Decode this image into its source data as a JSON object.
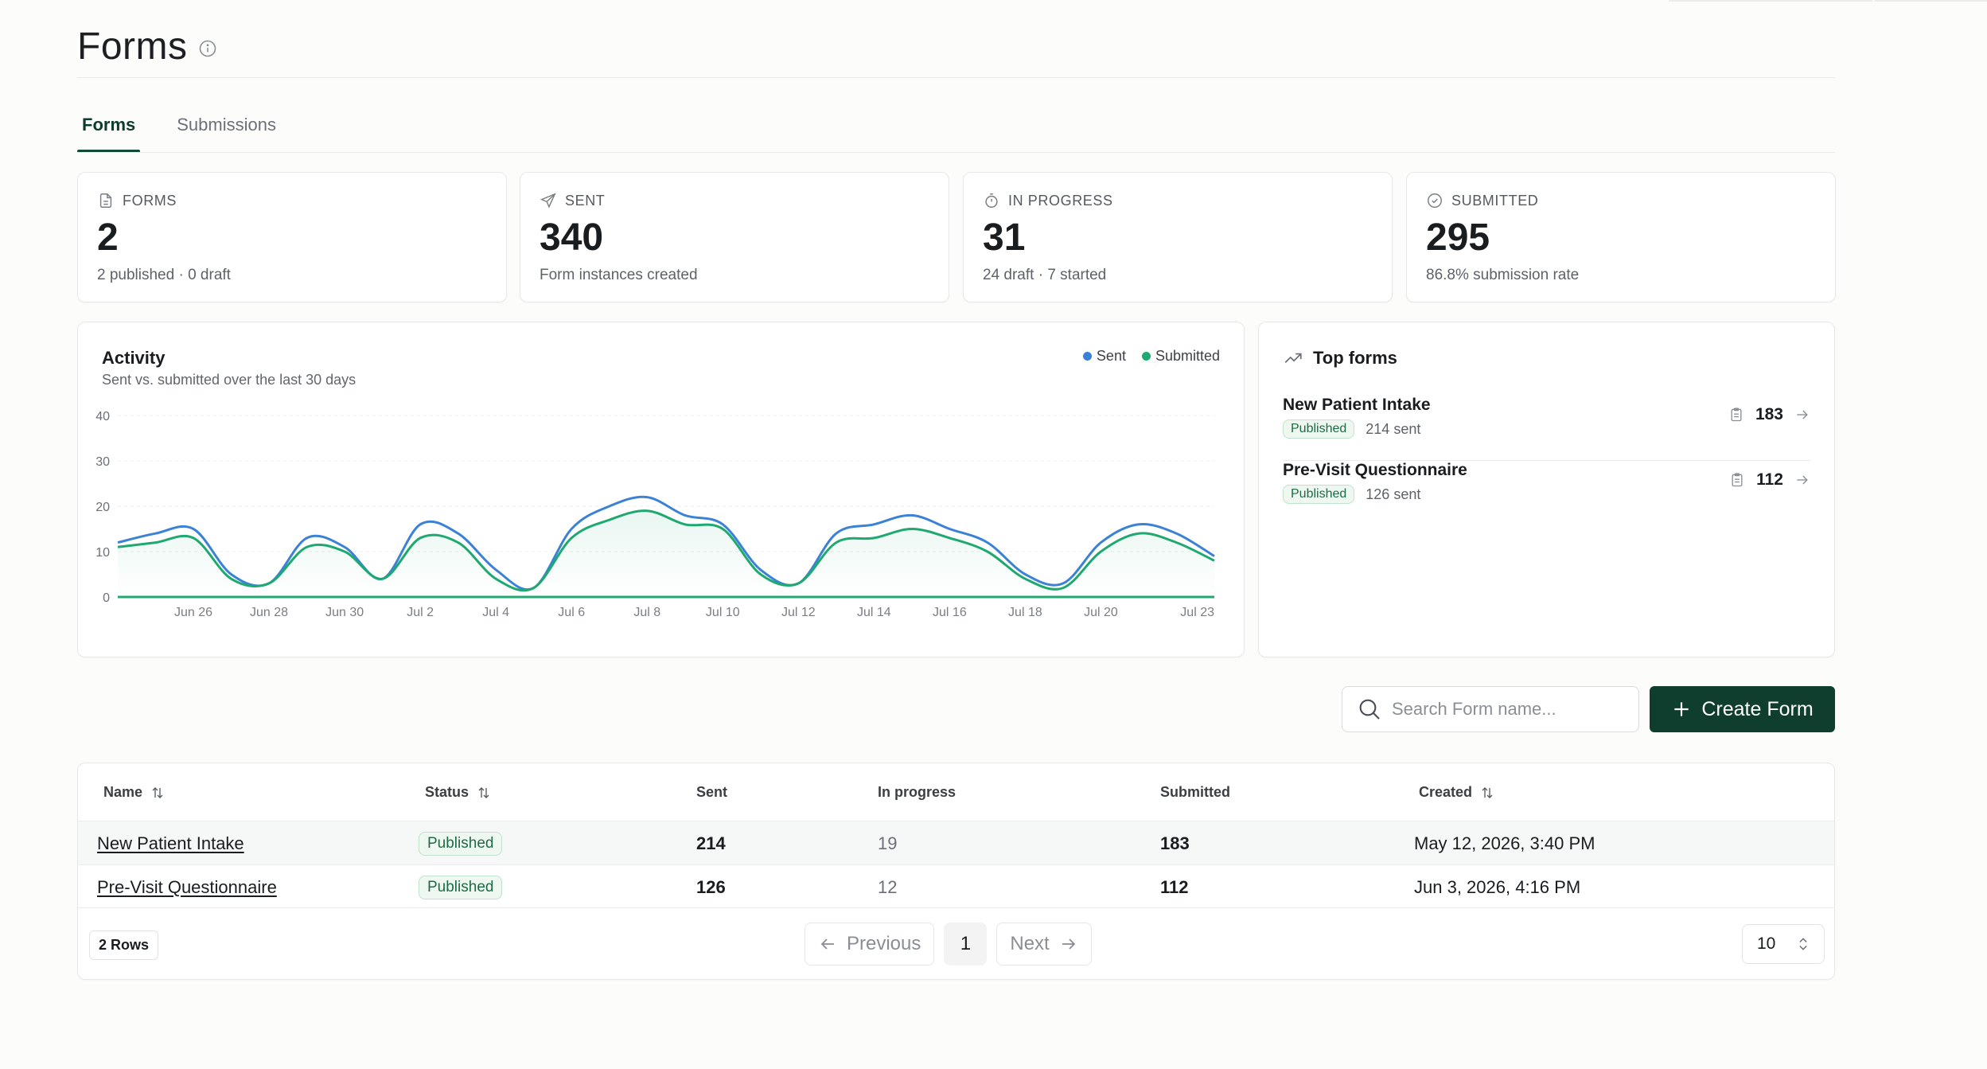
{
  "page": {
    "title": "Forms"
  },
  "tabs": [
    {
      "label": "Forms",
      "active": true
    },
    {
      "label": "Submissions",
      "active": false
    }
  ],
  "stats": [
    {
      "icon": "file-icon",
      "label": "FORMS",
      "value": "2",
      "sub": "2 published · 0 draft"
    },
    {
      "icon": "send-icon",
      "label": "SENT",
      "value": "340",
      "sub": "Form instances created"
    },
    {
      "icon": "timer-icon",
      "label": "IN PROGRESS",
      "value": "31",
      "sub": "24 draft · 7 started"
    },
    {
      "icon": "check-circle-icon",
      "label": "SUBMITTED",
      "value": "295",
      "sub": "86.8% submission rate"
    }
  ],
  "activity": {
    "title": "Activity",
    "subtitle": "Sent vs. submitted over the last 30 days",
    "legend": [
      {
        "label": "Sent",
        "color": "#3b82d6"
      },
      {
        "label": "Submitted",
        "color": "#1fa971"
      }
    ]
  },
  "chart_data": {
    "type": "area",
    "title": "Activity",
    "subtitle": "Sent vs. submitted over the last 30 days",
    "y_ticks": [
      "0",
      "10",
      "20",
      "30",
      "40"
    ],
    "ylim": [
      0,
      40
    ],
    "grid": true,
    "legend_position": "top-right",
    "x_tick_labels": [
      "Jun 26",
      "Jun 28",
      "Jun 30",
      "Jul 2",
      "Jul 4",
      "Jul 6",
      "Jul 8",
      "Jul 10",
      "Jul 12",
      "Jul 14",
      "Jul 16",
      "Jul 18",
      "Jul 20",
      "Jul 23"
    ],
    "x": [
      "Jun 24",
      "Jun 25",
      "Jun 26",
      "Jun 27",
      "Jun 28",
      "Jun 29",
      "Jun 30",
      "Jul 1",
      "Jul 2",
      "Jul 3",
      "Jul 4",
      "Jul 5",
      "Jul 6",
      "Jul 7",
      "Jul 8",
      "Jul 9",
      "Jul 10",
      "Jul 11",
      "Jul 12",
      "Jul 13",
      "Jul 14",
      "Jul 15",
      "Jul 16",
      "Jul 17",
      "Jul 18",
      "Jul 19",
      "Jul 20",
      "Jul 21",
      "Jul 22",
      "Jul 23"
    ],
    "series": [
      {
        "name": "Sent",
        "color": "#3b82d6",
        "values": [
          12,
          14,
          15,
          5,
          3,
          13,
          11,
          4,
          16,
          14,
          6,
          2,
          15,
          20,
          22,
          18,
          16,
          6,
          3,
          14,
          16,
          18,
          15,
          12,
          5,
          3,
          12,
          16,
          14,
          9
        ]
      },
      {
        "name": "Submitted",
        "color": "#1fa971",
        "values": [
          0,
          0,
          0,
          0,
          0,
          0,
          0,
          0,
          0,
          0,
          0,
          0,
          0,
          0,
          0,
          0,
          0,
          0,
          0,
          0,
          0,
          0,
          0,
          0,
          0,
          0,
          0,
          0,
          0,
          0
        ]
      },
      {
        "name": "Submitted",
        "color": "#1fa971",
        "values": [
          11,
          12,
          13,
          4,
          3,
          11,
          10,
          4,
          13,
          12,
          4,
          2,
          13,
          17,
          19,
          16,
          15,
          5,
          3,
          12,
          13,
          15,
          13,
          10,
          4,
          2,
          10,
          14,
          12,
          8
        ]
      }
    ]
  },
  "top_forms": {
    "title": "Top forms",
    "items": [
      {
        "name": "New Patient Intake",
        "status": "Published",
        "sent": "214 sent",
        "submitted": "183"
      },
      {
        "name": "Pre-Visit Questionnaire",
        "status": "Published",
        "sent": "126 sent",
        "submitted": "112"
      }
    ]
  },
  "toolbar": {
    "search_placeholder": "Search Form name...",
    "create_label": "Create Form"
  },
  "table": {
    "headers": [
      "Name",
      "Status",
      "Sent",
      "In progress",
      "Submitted",
      "Created"
    ],
    "rows": [
      {
        "name": "New Patient Intake",
        "status": "Published",
        "sent": "214",
        "in_progress": "19",
        "submitted": "183",
        "created": "May 12, 2026, 3:40 PM"
      },
      {
        "name": "Pre-Visit Questionnaire",
        "status": "Published",
        "sent": "126",
        "in_progress": "12",
        "submitted": "112",
        "created": "Jun 3, 2026, 4:16 PM"
      }
    ],
    "rows_count": "2 Rows",
    "pagination": {
      "previous": "Previous",
      "page": "1",
      "next": "Next"
    },
    "page_size": "10"
  }
}
